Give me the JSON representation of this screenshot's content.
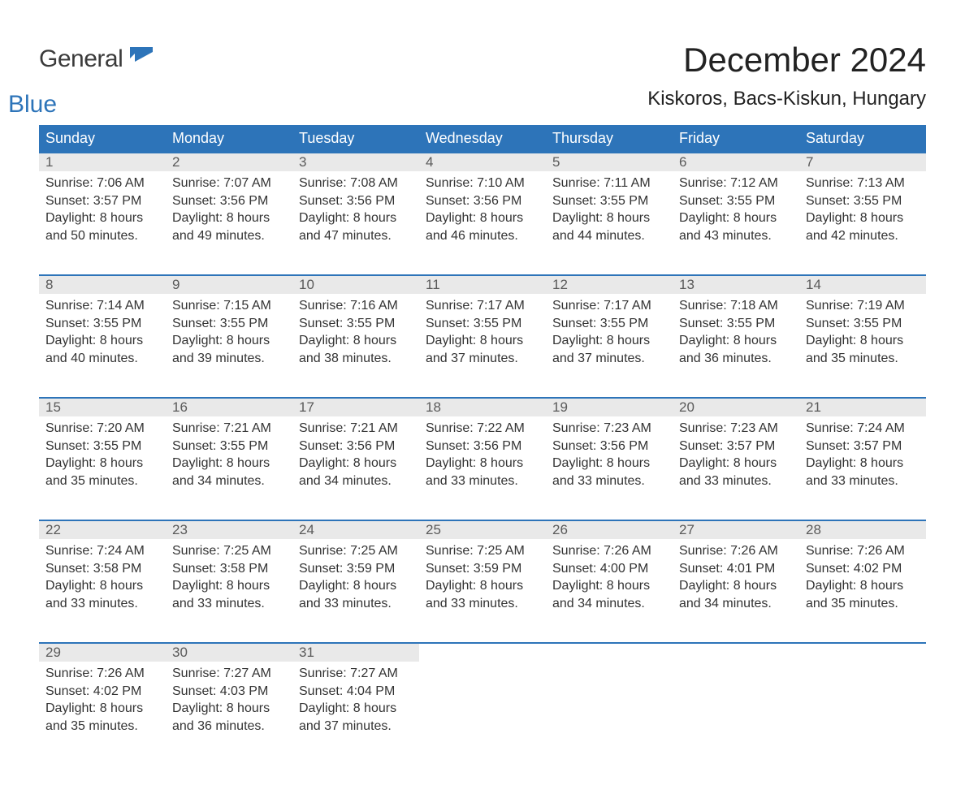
{
  "logo": {
    "text1": "General",
    "text2": "Blue"
  },
  "title": "December 2024",
  "location": "Kiskoros, Bacs-Kiskun, Hungary",
  "colors": {
    "header_bg": "#2d74b9",
    "header_text": "#ffffff",
    "daynum_bg": "#e9e9e9",
    "row_border": "#2d74b9",
    "body_text": "#333333",
    "logo_gray": "#3b3b3b",
    "logo_blue": "#2d74b9"
  },
  "weekdays": [
    "Sunday",
    "Monday",
    "Tuesday",
    "Wednesday",
    "Thursday",
    "Friday",
    "Saturday"
  ],
  "weeks": [
    [
      {
        "n": "1",
        "sunrise": "Sunrise: 7:06 AM",
        "sunset": "Sunset: 3:57 PM",
        "day1": "Daylight: 8 hours",
        "day2": "and 50 minutes."
      },
      {
        "n": "2",
        "sunrise": "Sunrise: 7:07 AM",
        "sunset": "Sunset: 3:56 PM",
        "day1": "Daylight: 8 hours",
        "day2": "and 49 minutes."
      },
      {
        "n": "3",
        "sunrise": "Sunrise: 7:08 AM",
        "sunset": "Sunset: 3:56 PM",
        "day1": "Daylight: 8 hours",
        "day2": "and 47 minutes."
      },
      {
        "n": "4",
        "sunrise": "Sunrise: 7:10 AM",
        "sunset": "Sunset: 3:56 PM",
        "day1": "Daylight: 8 hours",
        "day2": "and 46 minutes."
      },
      {
        "n": "5",
        "sunrise": "Sunrise: 7:11 AM",
        "sunset": "Sunset: 3:55 PM",
        "day1": "Daylight: 8 hours",
        "day2": "and 44 minutes."
      },
      {
        "n": "6",
        "sunrise": "Sunrise: 7:12 AM",
        "sunset": "Sunset: 3:55 PM",
        "day1": "Daylight: 8 hours",
        "day2": "and 43 minutes."
      },
      {
        "n": "7",
        "sunrise": "Sunrise: 7:13 AM",
        "sunset": "Sunset: 3:55 PM",
        "day1": "Daylight: 8 hours",
        "day2": "and 42 minutes."
      }
    ],
    [
      {
        "n": "8",
        "sunrise": "Sunrise: 7:14 AM",
        "sunset": "Sunset: 3:55 PM",
        "day1": "Daylight: 8 hours",
        "day2": "and 40 minutes."
      },
      {
        "n": "9",
        "sunrise": "Sunrise: 7:15 AM",
        "sunset": "Sunset: 3:55 PM",
        "day1": "Daylight: 8 hours",
        "day2": "and 39 minutes."
      },
      {
        "n": "10",
        "sunrise": "Sunrise: 7:16 AM",
        "sunset": "Sunset: 3:55 PM",
        "day1": "Daylight: 8 hours",
        "day2": "and 38 minutes."
      },
      {
        "n": "11",
        "sunrise": "Sunrise: 7:17 AM",
        "sunset": "Sunset: 3:55 PM",
        "day1": "Daylight: 8 hours",
        "day2": "and 37 minutes."
      },
      {
        "n": "12",
        "sunrise": "Sunrise: 7:17 AM",
        "sunset": "Sunset: 3:55 PM",
        "day1": "Daylight: 8 hours",
        "day2": "and 37 minutes."
      },
      {
        "n": "13",
        "sunrise": "Sunrise: 7:18 AM",
        "sunset": "Sunset: 3:55 PM",
        "day1": "Daylight: 8 hours",
        "day2": "and 36 minutes."
      },
      {
        "n": "14",
        "sunrise": "Sunrise: 7:19 AM",
        "sunset": "Sunset: 3:55 PM",
        "day1": "Daylight: 8 hours",
        "day2": "and 35 minutes."
      }
    ],
    [
      {
        "n": "15",
        "sunrise": "Sunrise: 7:20 AM",
        "sunset": "Sunset: 3:55 PM",
        "day1": "Daylight: 8 hours",
        "day2": "and 35 minutes."
      },
      {
        "n": "16",
        "sunrise": "Sunrise: 7:21 AM",
        "sunset": "Sunset: 3:55 PM",
        "day1": "Daylight: 8 hours",
        "day2": "and 34 minutes."
      },
      {
        "n": "17",
        "sunrise": "Sunrise: 7:21 AM",
        "sunset": "Sunset: 3:56 PM",
        "day1": "Daylight: 8 hours",
        "day2": "and 34 minutes."
      },
      {
        "n": "18",
        "sunrise": "Sunrise: 7:22 AM",
        "sunset": "Sunset: 3:56 PM",
        "day1": "Daylight: 8 hours",
        "day2": "and 33 minutes."
      },
      {
        "n": "19",
        "sunrise": "Sunrise: 7:23 AM",
        "sunset": "Sunset: 3:56 PM",
        "day1": "Daylight: 8 hours",
        "day2": "and 33 minutes."
      },
      {
        "n": "20",
        "sunrise": "Sunrise: 7:23 AM",
        "sunset": "Sunset: 3:57 PM",
        "day1": "Daylight: 8 hours",
        "day2": "and 33 minutes."
      },
      {
        "n": "21",
        "sunrise": "Sunrise: 7:24 AM",
        "sunset": "Sunset: 3:57 PM",
        "day1": "Daylight: 8 hours",
        "day2": "and 33 minutes."
      }
    ],
    [
      {
        "n": "22",
        "sunrise": "Sunrise: 7:24 AM",
        "sunset": "Sunset: 3:58 PM",
        "day1": "Daylight: 8 hours",
        "day2": "and 33 minutes."
      },
      {
        "n": "23",
        "sunrise": "Sunrise: 7:25 AM",
        "sunset": "Sunset: 3:58 PM",
        "day1": "Daylight: 8 hours",
        "day2": "and 33 minutes."
      },
      {
        "n": "24",
        "sunrise": "Sunrise: 7:25 AM",
        "sunset": "Sunset: 3:59 PM",
        "day1": "Daylight: 8 hours",
        "day2": "and 33 minutes."
      },
      {
        "n": "25",
        "sunrise": "Sunrise: 7:25 AM",
        "sunset": "Sunset: 3:59 PM",
        "day1": "Daylight: 8 hours",
        "day2": "and 33 minutes."
      },
      {
        "n": "26",
        "sunrise": "Sunrise: 7:26 AM",
        "sunset": "Sunset: 4:00 PM",
        "day1": "Daylight: 8 hours",
        "day2": "and 34 minutes."
      },
      {
        "n": "27",
        "sunrise": "Sunrise: 7:26 AM",
        "sunset": "Sunset: 4:01 PM",
        "day1": "Daylight: 8 hours",
        "day2": "and 34 minutes."
      },
      {
        "n": "28",
        "sunrise": "Sunrise: 7:26 AM",
        "sunset": "Sunset: 4:02 PM",
        "day1": "Daylight: 8 hours",
        "day2": "and 35 minutes."
      }
    ],
    [
      {
        "n": "29",
        "sunrise": "Sunrise: 7:26 AM",
        "sunset": "Sunset: 4:02 PM",
        "day1": "Daylight: 8 hours",
        "day2": "and 35 minutes."
      },
      {
        "n": "30",
        "sunrise": "Sunrise: 7:27 AM",
        "sunset": "Sunset: 4:03 PM",
        "day1": "Daylight: 8 hours",
        "day2": "and 36 minutes."
      },
      {
        "n": "31",
        "sunrise": "Sunrise: 7:27 AM",
        "sunset": "Sunset: 4:04 PM",
        "day1": "Daylight: 8 hours",
        "day2": "and 37 minutes."
      },
      null,
      null,
      null,
      null
    ]
  ]
}
